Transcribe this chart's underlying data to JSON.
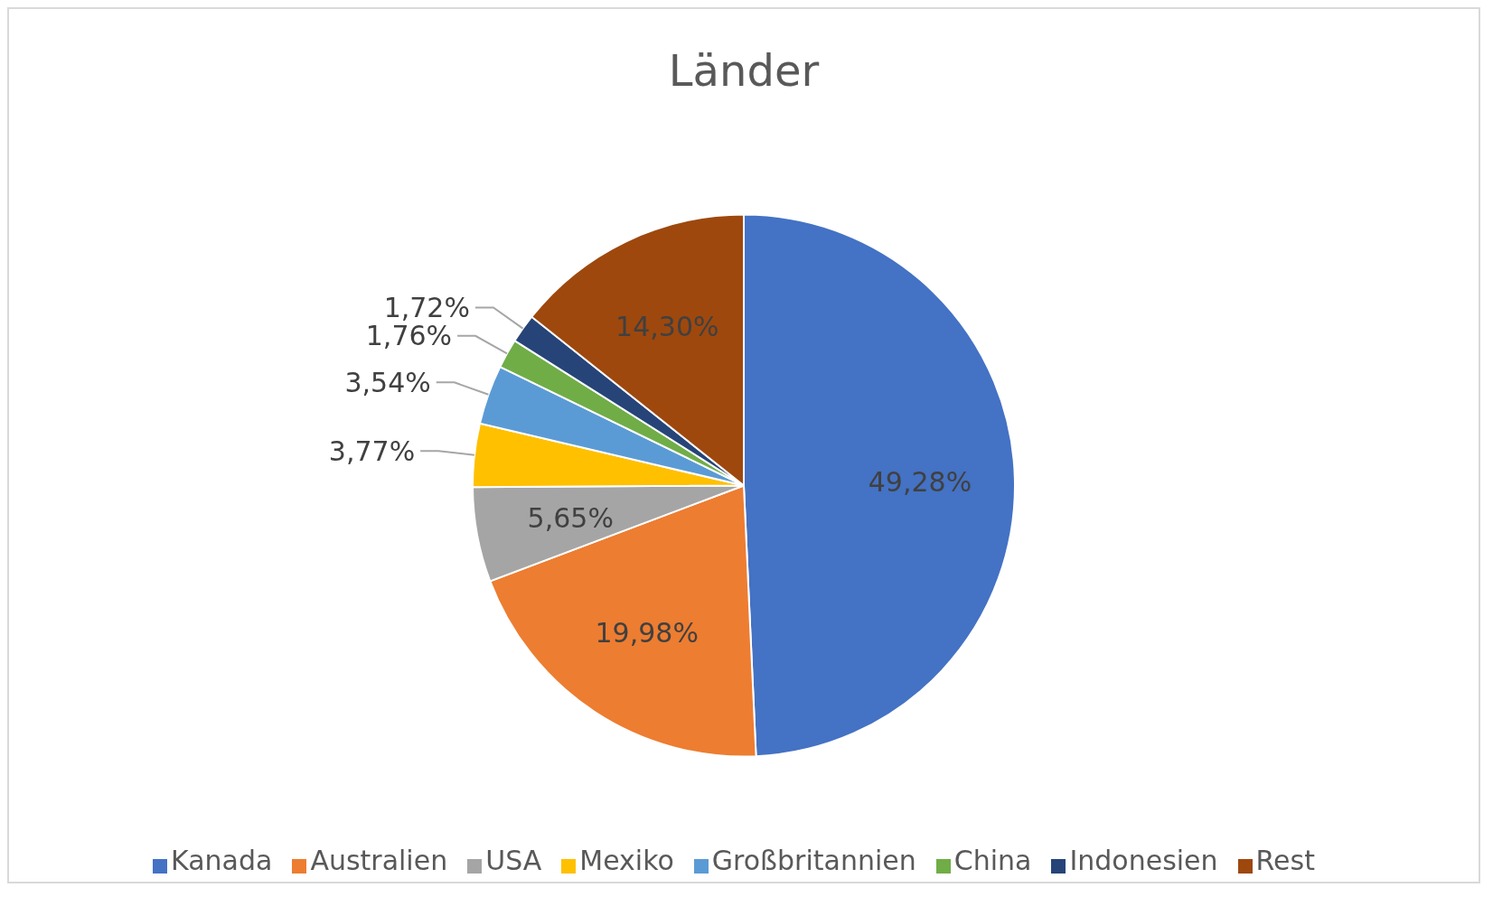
{
  "chart_data": {
    "type": "pie",
    "title": "Länder",
    "categories": [
      "Kanada",
      "Australien",
      "USA",
      "Mexiko",
      "Großbritannien",
      "China",
      "Indonesien",
      "Rest"
    ],
    "values": [
      49.28,
      19.98,
      5.65,
      3.77,
      3.54,
      1.76,
      1.72,
      14.3
    ],
    "colors": [
      "#4472c4",
      "#ed7d31",
      "#a5a5a5",
      "#ffc000",
      "#5b9bd5",
      "#70ad47",
      "#264478",
      "#9e480e"
    ],
    "value_labels": [
      "49,28%",
      "19,98%",
      "5,65%",
      "3,77%",
      "3,54%",
      "1,76%",
      "1,72%",
      "14,30%"
    ],
    "legend": "bottom"
  }
}
